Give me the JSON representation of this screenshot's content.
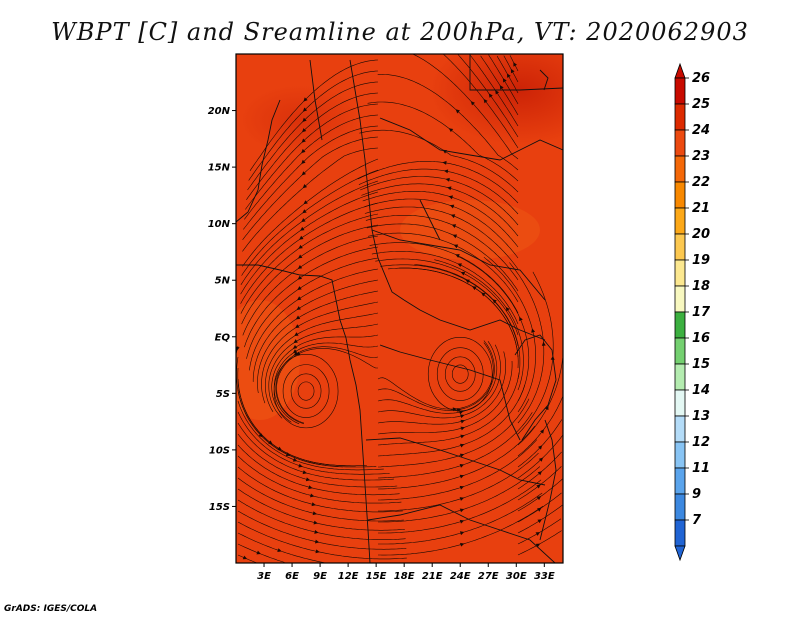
{
  "title": "WBPT [C] and Sreamline at 200hPa, VT: 2020062903",
  "credit": "GrADS: IGES/COLA",
  "map": {
    "lon_range": [
      0,
      35
    ],
    "lat_range": [
      -20,
      25
    ],
    "background_color": "#e8400f",
    "lat_ticks": [
      {
        "value": 20,
        "label": "20N"
      },
      {
        "value": 15,
        "label": "15N"
      },
      {
        "value": 10,
        "label": "10N"
      },
      {
        "value": 5,
        "label": "5N"
      },
      {
        "value": 0,
        "label": "EQ"
      },
      {
        "value": -5,
        "label": "5S"
      },
      {
        "value": -10,
        "label": "10S"
      },
      {
        "value": -15,
        "label": "15S"
      }
    ],
    "lon_ticks": [
      {
        "value": 3,
        "label": "3E"
      },
      {
        "value": 6,
        "label": "6E"
      },
      {
        "value": 9,
        "label": "9E"
      },
      {
        "value": 12,
        "label": "12E"
      },
      {
        "value": 15,
        "label": "15E"
      },
      {
        "value": 18,
        "label": "18E"
      },
      {
        "value": 21,
        "label": "21E"
      },
      {
        "value": 24,
        "label": "24E"
      },
      {
        "value": 27,
        "label": "27E"
      },
      {
        "value": 30,
        "label": "30E"
      },
      {
        "value": 33,
        "label": "33E"
      }
    ],
    "vortices": [
      {
        "lon": 7.5,
        "lat": -4.8,
        "rotation": "ccw"
      },
      {
        "lon": 24.0,
        "lat": -3.3,
        "rotation": "ccw"
      }
    ]
  },
  "colorbar": {
    "labels": [
      "26",
      "25",
      "24",
      "23",
      "22",
      "21",
      "20",
      "19",
      "18",
      "17",
      "16",
      "15",
      "14",
      "13",
      "12",
      "11",
      "9",
      "7"
    ],
    "colors": [
      "#c80a00",
      "#dc2a00",
      "#ec4a10",
      "#f46808",
      "#f88800",
      "#fca818",
      "#fcc850",
      "#fce890",
      "#f8f8c0",
      "#3cb040",
      "#74d070",
      "#b4ecb0",
      "#e4f8f4",
      "#b4dcf8",
      "#88c4f4",
      "#5aa4ec",
      "#3c88e0",
      "#2064d4"
    ]
  }
}
